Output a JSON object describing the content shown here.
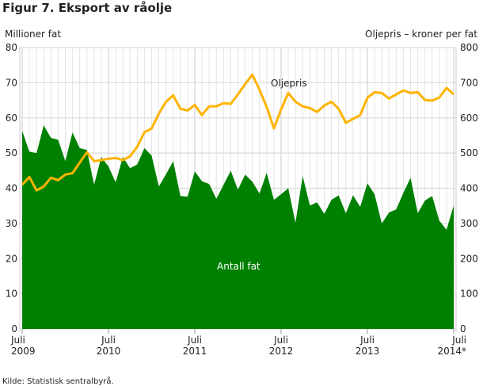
{
  "chart_data": {
    "type": "area+line",
    "title": "Figur 7. Eksport av råolje",
    "ylabel_left": "Millioner fat",
    "ylabel_right": "Oljepris – kroner per fat",
    "ylim_left": [
      0,
      80
    ],
    "ylim_right": [
      0,
      800
    ],
    "yticks_left": [
      0,
      10,
      20,
      30,
      40,
      50,
      60,
      70,
      80
    ],
    "yticks_right": [
      0,
      100,
      200,
      300,
      400,
      500,
      600,
      700,
      800
    ],
    "x_start": "2009-07",
    "x_end": "2014-07",
    "xticks": [
      {
        "month": "Juli",
        "year": "2009"
      },
      {
        "month": "Juli",
        "year": "2010"
      },
      {
        "month": "Juli",
        "year": "2011"
      },
      {
        "month": "Juli",
        "year": "2012"
      },
      {
        "month": "Juli",
        "year": "2013"
      },
      {
        "month": "Juli",
        "year": "2014*"
      }
    ],
    "grid": true,
    "colors": {
      "antall_fat": "#008000",
      "oljepris": "#ffb300"
    },
    "series": [
      {
        "name": "Antall fat",
        "axis": "left",
        "type": "area",
        "values": [
          56.3,
          50.4,
          50,
          57.9,
          54.3,
          53.8,
          47.7,
          55.9,
          51.4,
          50.9,
          41,
          48.9,
          46.2,
          41.7,
          48.9,
          45.7,
          46.8,
          51.4,
          49.3,
          40.5,
          44,
          47.7,
          37.8,
          37.6,
          44.8,
          42,
          41.2,
          37,
          41,
          45,
          39.6,
          43.9,
          41.9,
          38.5,
          44.4,
          36.7,
          38.3,
          40,
          30.2,
          43.5,
          35.1,
          36,
          32.7,
          36.7,
          38,
          32.9,
          38,
          34.7,
          41.4,
          38.3,
          30,
          33.1,
          34,
          38.7,
          43,
          32.9,
          36.5,
          37.8,
          30.8,
          28.2,
          35.1
        ]
      },
      {
        "name": "Oljepris",
        "axis": "right",
        "type": "line",
        "values": [
          410,
          432,
          394,
          405,
          430,
          423,
          439,
          443,
          473,
          502,
          477,
          480,
          484,
          486,
          480,
          491,
          518,
          559,
          570,
          612,
          646,
          664,
          626,
          621,
          637,
          608,
          633,
          633,
          642,
          640,
          667,
          696,
          723,
          680,
          631,
          570,
          624,
          671,
          646,
          633,
          628,
          617,
          635,
          646,
          626,
          586,
          597,
          608,
          657,
          673,
          671,
          655,
          667,
          678,
          671,
          673,
          651,
          649,
          658,
          685,
          667
        ]
      }
    ],
    "source": "Kilde: Statistisk sentralbyrå."
  }
}
